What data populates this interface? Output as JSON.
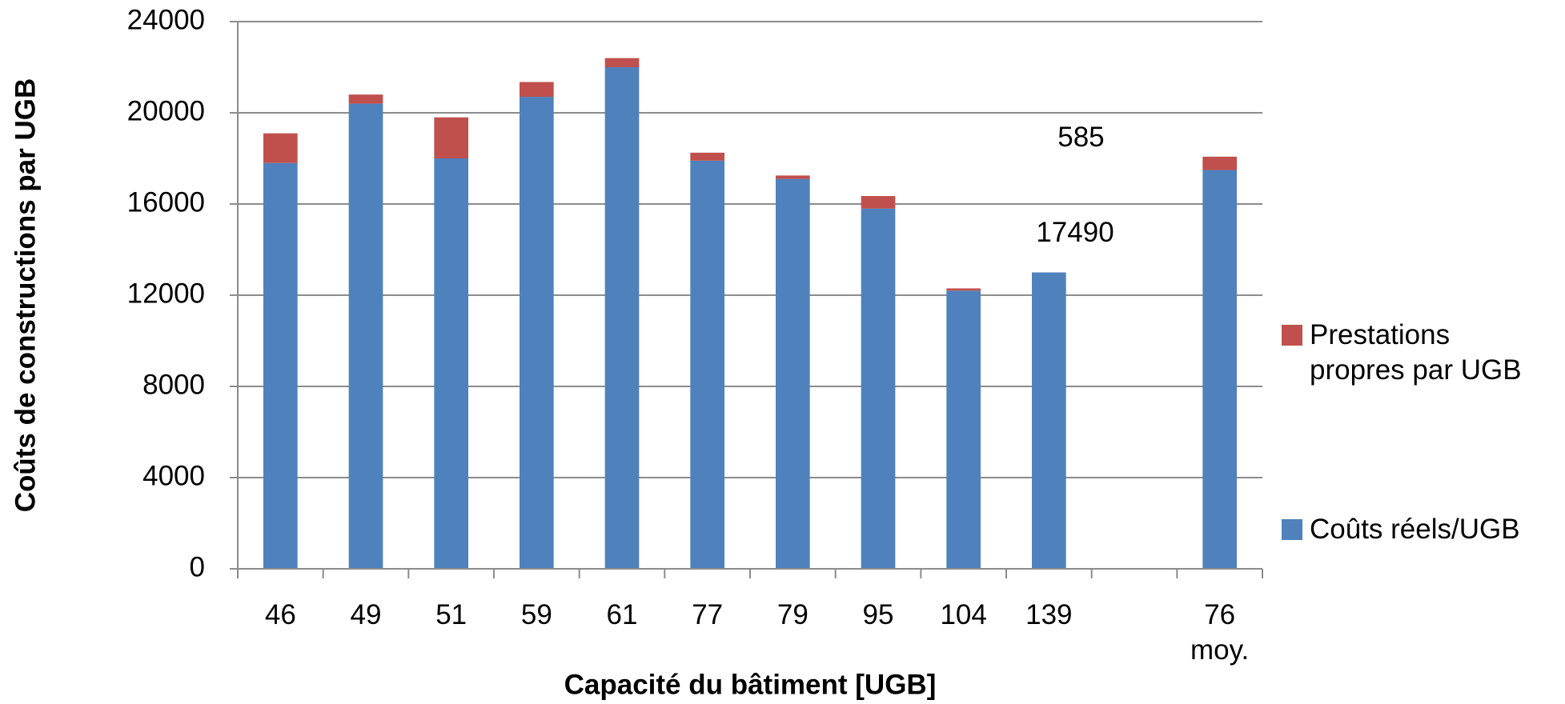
{
  "chart_data": {
    "type": "stacked_bar",
    "x_label": "Capacité du bâtiment [UGB]",
    "y_label": "Coûts de constructions par UGB",
    "categories": [
      "46",
      "49",
      "51",
      "59",
      "61",
      "77",
      "79",
      "95",
      "104",
      "139",
      null,
      "76 moy."
    ],
    "series": [
      {
        "name": "Coûts réels/UGB",
        "color": "#4f81bd",
        "values": [
          17800,
          20400,
          18000,
          20700,
          22000,
          17900,
          17100,
          15800,
          12200,
          13000,
          null,
          17490
        ]
      },
      {
        "name": "Prestations propres par UGB",
        "color": "#c0504d",
        "values": [
          1300,
          400,
          1800,
          650,
          400,
          350,
          150,
          550,
          100,
          0,
          null,
          585
        ]
      }
    ],
    "labeled_categories": [
      11
    ],
    "ylim": [
      0,
      24000
    ],
    "yticks": [
      0,
      4000,
      8000,
      12000,
      16000,
      20000,
      24000
    ],
    "grid": true
  }
}
